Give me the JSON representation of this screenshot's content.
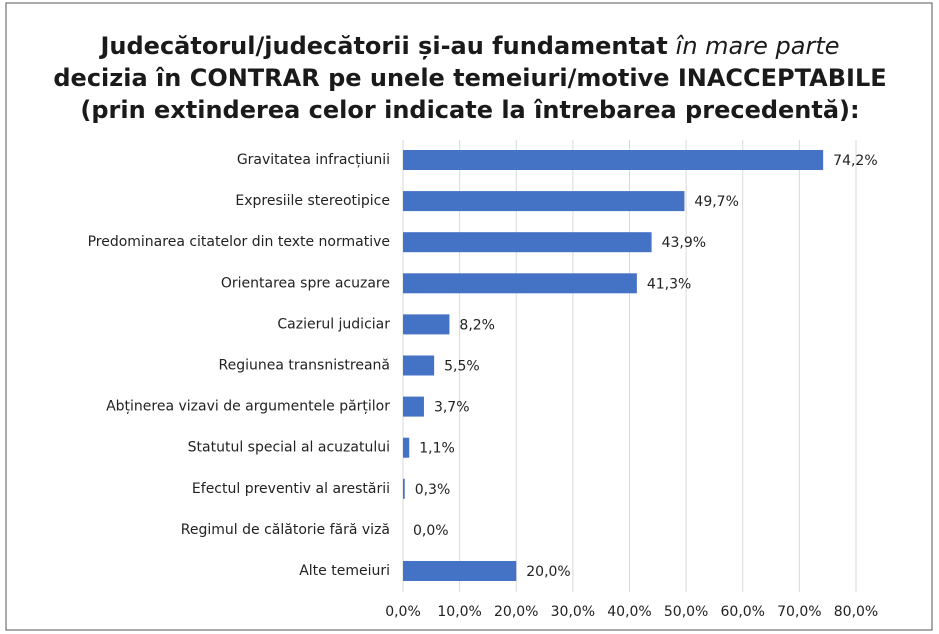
{
  "chart_data": {
    "type": "hbar",
    "title": [
      {
        "text": "Judecătorul/judecătorii și-au fundamentat"
      },
      {
        "text": "în mare parte",
        "italic": true
      },
      {
        "text": "decizia în CONTRAR pe unele temeiuri/motive INACCEPTABILE"
      },
      {
        "text": "(prin extinderea celor indicate la întrebarea precedentă):"
      }
    ],
    "categories": [
      "Gravitatea infracțiunii",
      "Expresiile stereotipice",
      "Predominarea citatelor din texte normative",
      "Orientarea spre acuzare",
      "Cazierul judiciar",
      "Regiunea transnistreană",
      "Abținerea vizavi de argumentele părților",
      "Statutul special al acuzatului",
      "Efectul preventiv al arestării",
      "Regimul de călătorie fără viză",
      "Alte temeiuri"
    ],
    "values": [
      74.2,
      49.7,
      43.9,
      41.3,
      8.2,
      5.5,
      3.7,
      1.1,
      0.3,
      0.0,
      20.0
    ],
    "value_labels": [
      "74,2%",
      "49,7%",
      "43,9%",
      "41,3%",
      "8,2%",
      "5,5%",
      "3,7%",
      "1,1%",
      "0,3%",
      "0,0%",
      "20,0%"
    ],
    "color": "#4472c4",
    "xlim": [
      0,
      80
    ],
    "xticks": [
      {
        "value": 0,
        "label": "0,0%"
      },
      {
        "value": 10,
        "label": "10,0%"
      },
      {
        "value": 20,
        "label": "20,0%"
      },
      {
        "value": 30,
        "label": "30,0%"
      },
      {
        "value": 40,
        "label": "40,0%"
      },
      {
        "value": 50,
        "label": "50,0%"
      },
      {
        "value": 60,
        "label": "60,0%"
      },
      {
        "value": 70,
        "label": "70,0%"
      },
      {
        "value": 80,
        "label": "80,0%"
      }
    ],
    "grid": true
  }
}
